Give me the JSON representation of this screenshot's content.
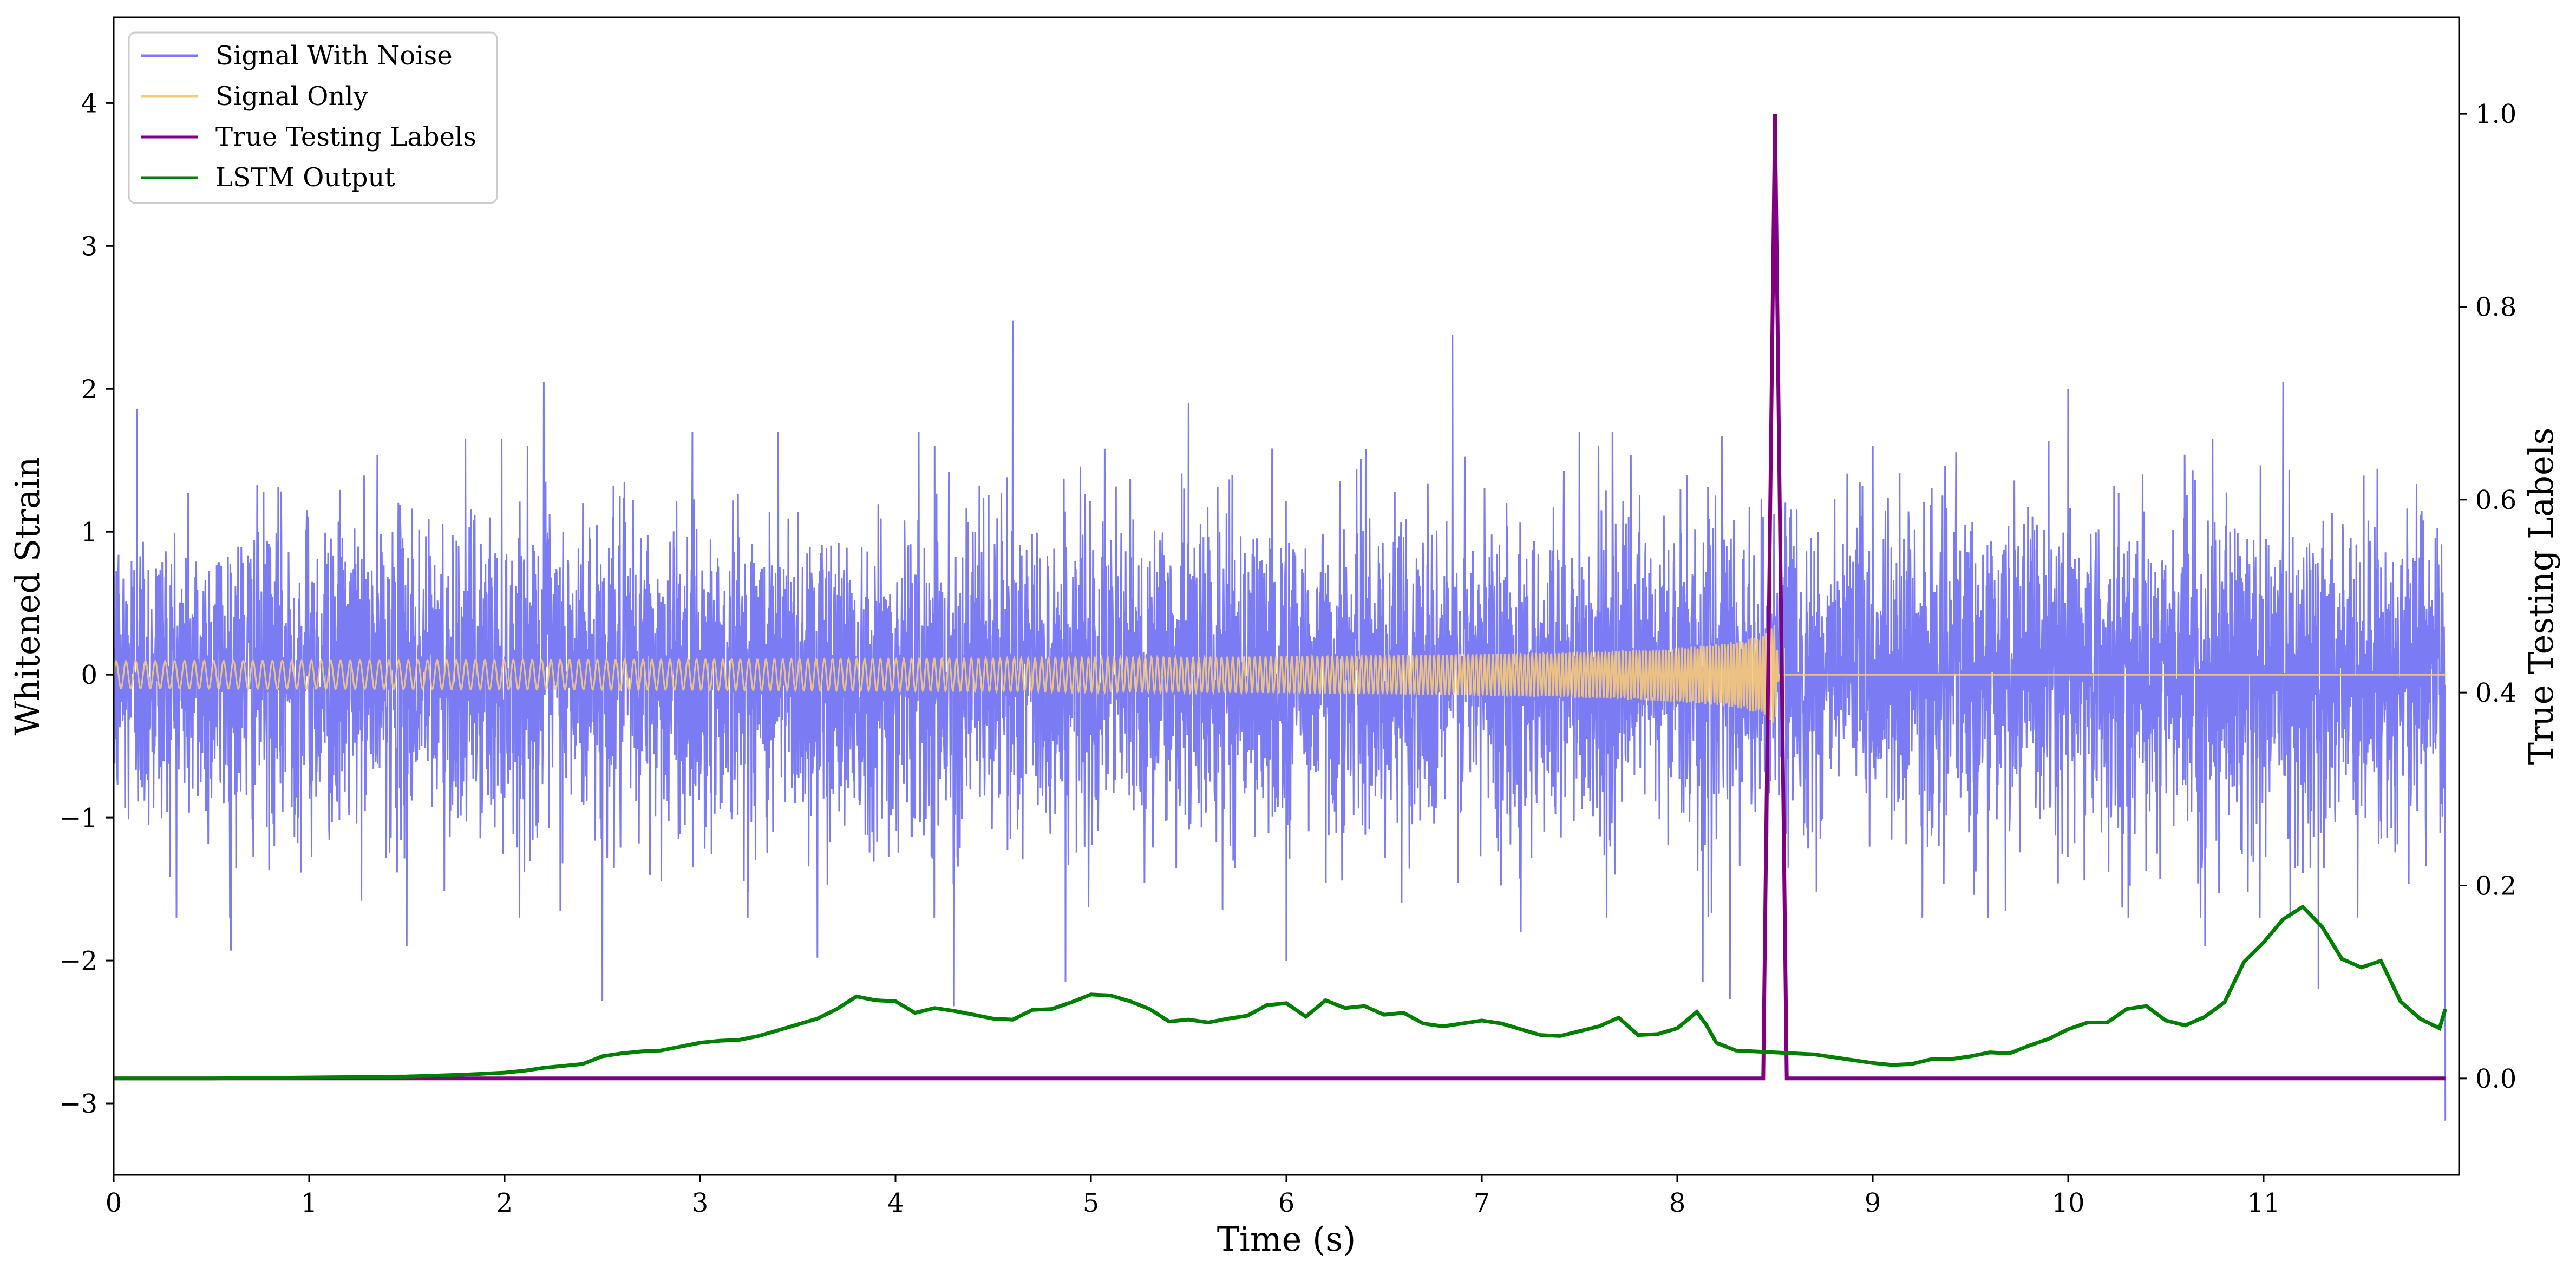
{
  "chart_data": {
    "type": "line",
    "xlabel": "Time (s)",
    "ylabel_left": "Whitened Strain",
    "ylabel_right": "True Testing Labels",
    "xlim": [
      0,
      12
    ],
    "ylim_left": [
      -3.5,
      4.6
    ],
    "ylim_right": [
      -0.1,
      1.1
    ],
    "x_ticks": [
      0,
      1,
      2,
      3,
      4,
      5,
      6,
      7,
      8,
      9,
      10,
      11
    ],
    "y_left_ticks": [
      -3,
      -2,
      -1,
      0,
      1,
      2,
      3,
      4
    ],
    "y_left_tick_labels": [
      "−3",
      "−2",
      "−1",
      "0",
      "1",
      "2",
      "3",
      "4"
    ],
    "y_right_ticks": [
      0.0,
      0.2,
      0.4,
      0.6,
      0.8,
      1.0
    ],
    "y_right_tick_labels": [
      "0.0",
      "0.2",
      "0.4",
      "0.6",
      "0.8",
      "1.0"
    ],
    "grid": false,
    "legend_position": "top-left",
    "series": [
      {
        "name": "Signal With Noise",
        "axis": "left",
        "color": "#7b7bf3",
        "noise_sigma": 0.55,
        "noise_points": 7200,
        "peaks": [
          {
            "x": 4.6,
            "y": 2.48
          },
          {
            "x": 6.85,
            "y": 2.38
          },
          {
            "x": 1.5,
            "y": 2.0
          },
          {
            "x": 0.12,
            "y": 1.86
          },
          {
            "x": 2.2,
            "y": 2.05
          },
          {
            "x": 10.0,
            "y": 2.0
          },
          {
            "x": 11.1,
            "y": 2.05
          },
          {
            "x": 4.2,
            "y": 1.6
          },
          {
            "x": 5.5,
            "y": 1.9
          },
          {
            "x": 7.5,
            "y": 1.7
          },
          {
            "x": 9.0,
            "y": 1.6
          },
          {
            "x": 3.4,
            "y": 1.7
          },
          {
            "x": 4.3,
            "y": -2.32
          },
          {
            "x": 8.27,
            "y": -2.27
          },
          {
            "x": 4.87,
            "y": -2.15
          },
          {
            "x": 2.5,
            "y": -2.28
          },
          {
            "x": 8.13,
            "y": -2.15
          },
          {
            "x": 11.28,
            "y": -2.2
          },
          {
            "x": 0.6,
            "y": -1.93
          },
          {
            "x": 1.5,
            "y": -1.9
          },
          {
            "x": 6.0,
            "y": -2.0
          },
          {
            "x": 10.7,
            "y": -1.9
          },
          {
            "x": 3.6,
            "y": -1.98
          },
          {
            "x": 7.2,
            "y": -1.8
          },
          {
            "x": 11.93,
            "y": -3.12
          }
        ]
      },
      {
        "name": "Signal Only",
        "axis": "left",
        "color": "#f8c978",
        "chirp": {
          "t_start": 0.0,
          "t_merge": 8.52,
          "amp_start": 0.012,
          "amp_peak": 0.6,
          "f_start": 20,
          "f_end": 70
        }
      },
      {
        "name": "True Testing Labels",
        "axis": "right",
        "color": "#800080",
        "x": [
          0,
          8.44,
          8.5,
          8.56,
          11.93
        ],
        "y": [
          0,
          0,
          1.0,
          0,
          0
        ]
      },
      {
        "name": "LSTM Output",
        "axis": "right",
        "color": "#008000",
        "x": [
          0,
          0.5,
          1.0,
          1.5,
          1.8,
          2.0,
          2.1,
          2.2,
          2.3,
          2.4,
          2.45,
          2.5,
          2.6,
          2.7,
          2.8,
          2.9,
          3.0,
          3.1,
          3.2,
          3.3,
          3.4,
          3.5,
          3.6,
          3.7,
          3.8,
          3.9,
          4.0,
          4.1,
          4.2,
          4.3,
          4.4,
          4.5,
          4.6,
          4.7,
          4.8,
          4.9,
          5.0,
          5.1,
          5.2,
          5.3,
          5.4,
          5.5,
          5.6,
          5.7,
          5.8,
          5.9,
          6.0,
          6.1,
          6.2,
          6.3,
          6.4,
          6.5,
          6.6,
          6.7,
          6.8,
          6.9,
          7.0,
          7.1,
          7.2,
          7.3,
          7.4,
          7.5,
          7.6,
          7.7,
          7.8,
          7.9,
          8.0,
          8.1,
          8.15,
          8.2,
          8.3,
          8.5,
          8.7,
          8.9,
          9.0,
          9.1,
          9.2,
          9.3,
          9.4,
          9.5,
          9.6,
          9.7,
          9.8,
          9.9,
          10.0,
          10.1,
          10.2,
          10.3,
          10.4,
          10.5,
          10.6,
          10.7,
          10.8,
          10.9,
          11.0,
          11.1,
          11.2,
          11.3,
          11.4,
          11.5,
          11.6,
          11.7,
          11.8,
          11.9,
          11.93
        ],
        "y": [
          0,
          0,
          0.001,
          0.002,
          0.004,
          0.006,
          0.008,
          0.011,
          0.013,
          0.015,
          0.019,
          0.023,
          0.026,
          0.028,
          0.029,
          0.033,
          0.037,
          0.039,
          0.04,
          0.044,
          0.05,
          0.056,
          0.062,
          0.072,
          0.085,
          0.081,
          0.08,
          0.068,
          0.073,
          0.07,
          0.066,
          0.062,
          0.061,
          0.071,
          0.072,
          0.079,
          0.087,
          0.086,
          0.08,
          0.072,
          0.059,
          0.061,
          0.058,
          0.062,
          0.065,
          0.076,
          0.078,
          0.064,
          0.081,
          0.073,
          0.075,
          0.066,
          0.068,
          0.057,
          0.054,
          0.057,
          0.06,
          0.057,
          0.051,
          0.045,
          0.044,
          0.049,
          0.054,
          0.063,
          0.045,
          0.046,
          0.052,
          0.069,
          0.055,
          0.037,
          0.029,
          0.027,
          0.025,
          0.019,
          0.016,
          0.014,
          0.015,
          0.02,
          0.02,
          0.023,
          0.027,
          0.026,
          0.034,
          0.041,
          0.051,
          0.058,
          0.058,
          0.072,
          0.075,
          0.06,
          0.055,
          0.064,
          0.079,
          0.121,
          0.141,
          0.165,
          0.178,
          0.157,
          0.124,
          0.115,
          0.122,
          0.08,
          0.062,
          0.052,
          0.072
        ]
      }
    ]
  }
}
